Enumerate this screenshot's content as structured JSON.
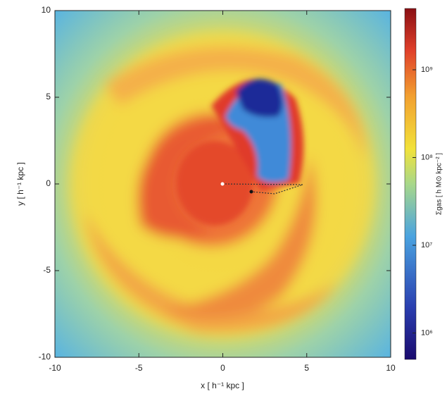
{
  "chart_data": {
    "type": "image",
    "xlabel": "x [ h⁻¹ kpc ]",
    "ylabel": "y [ h⁻¹ kpc ]",
    "colorbar_label": "Σgas [ h M⊙ kpc⁻² ]",
    "xlim": [
      -10,
      10
    ],
    "ylim": [
      -10,
      10
    ],
    "xticks": [
      -10,
      -5,
      0,
      5,
      10
    ],
    "yticks": [
      -10,
      -5,
      0,
      5,
      10
    ],
    "clim": [
      500000,
      5000000000
    ],
    "clog": true,
    "cticks": [
      {
        "value": 1000000,
        "label": "10⁶"
      },
      {
        "value": 10000000,
        "label": "10⁷"
      },
      {
        "value": 100000000,
        "label": "10⁸"
      },
      {
        "value": 1000000000,
        "label": "10⁹"
      }
    ]
  }
}
